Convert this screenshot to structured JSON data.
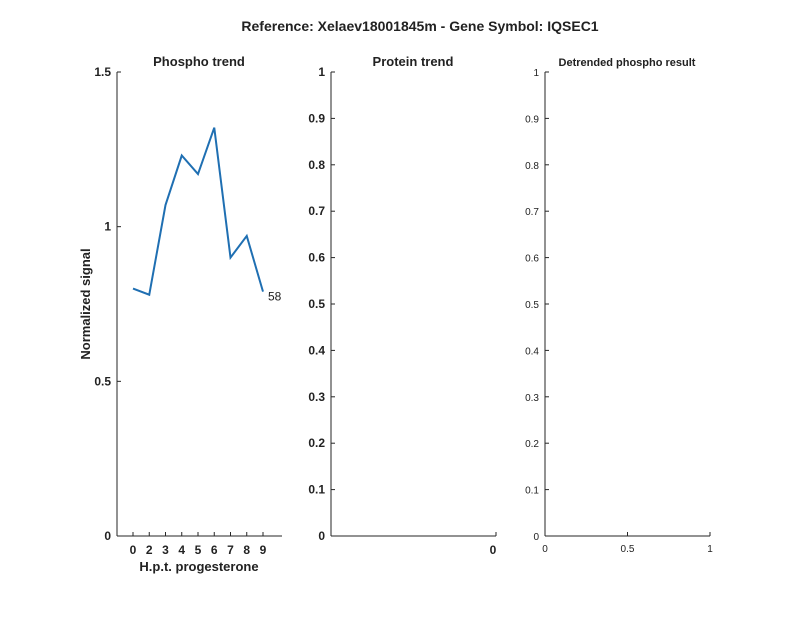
{
  "figure_title": "Reference:  Xelaev18001845m - Gene Symbol:  IQSEC1",
  "colors": {
    "line": "#1f6fb2",
    "axis": "#262626",
    "text": "#222222"
  },
  "chart_data": [
    {
      "type": "line",
      "title": "Phospho trend",
      "xlabel": "H.p.t. progesterone",
      "ylabel": "Normalized signal",
      "categories": [
        "0",
        "2",
        "3",
        "4",
        "5",
        "6",
        "7",
        "8",
        "9"
      ],
      "series": [
        {
          "values": [
            0.8,
            0.78,
            1.07,
            1.23,
            1.17,
            1.32,
            0.9,
            0.97,
            0.79
          ]
        }
      ],
      "end_label": "58",
      "ylim": [
        0,
        1.5
      ],
      "yticks": [
        "0",
        "0.5",
        "1",
        "1.5"
      ],
      "grid": false
    },
    {
      "type": "line",
      "title": "Protein trend",
      "xlabel": "",
      "ylabel": "",
      "series": [],
      "ylim": [
        0,
        1
      ],
      "yticks": [
        "0",
        "0.1",
        "0.2",
        "0.3",
        "0.4",
        "0.5",
        "0.6",
        "0.7",
        "0.8",
        "0.9",
        "1"
      ],
      "xticks": [
        "0"
      ],
      "grid": false
    },
    {
      "type": "line",
      "title": "Detrended phospho result",
      "xlabel": "",
      "ylabel": "",
      "series": [],
      "ylim": [
        0,
        1
      ],
      "xlim": [
        0,
        1
      ],
      "yticks": [
        "0",
        "0.1",
        "0.2",
        "0.3",
        "0.4",
        "0.5",
        "0.6",
        "0.7",
        "0.8",
        "0.9",
        "1"
      ],
      "xticks": [
        "0",
        "0.5",
        "1"
      ],
      "grid": false
    }
  ]
}
